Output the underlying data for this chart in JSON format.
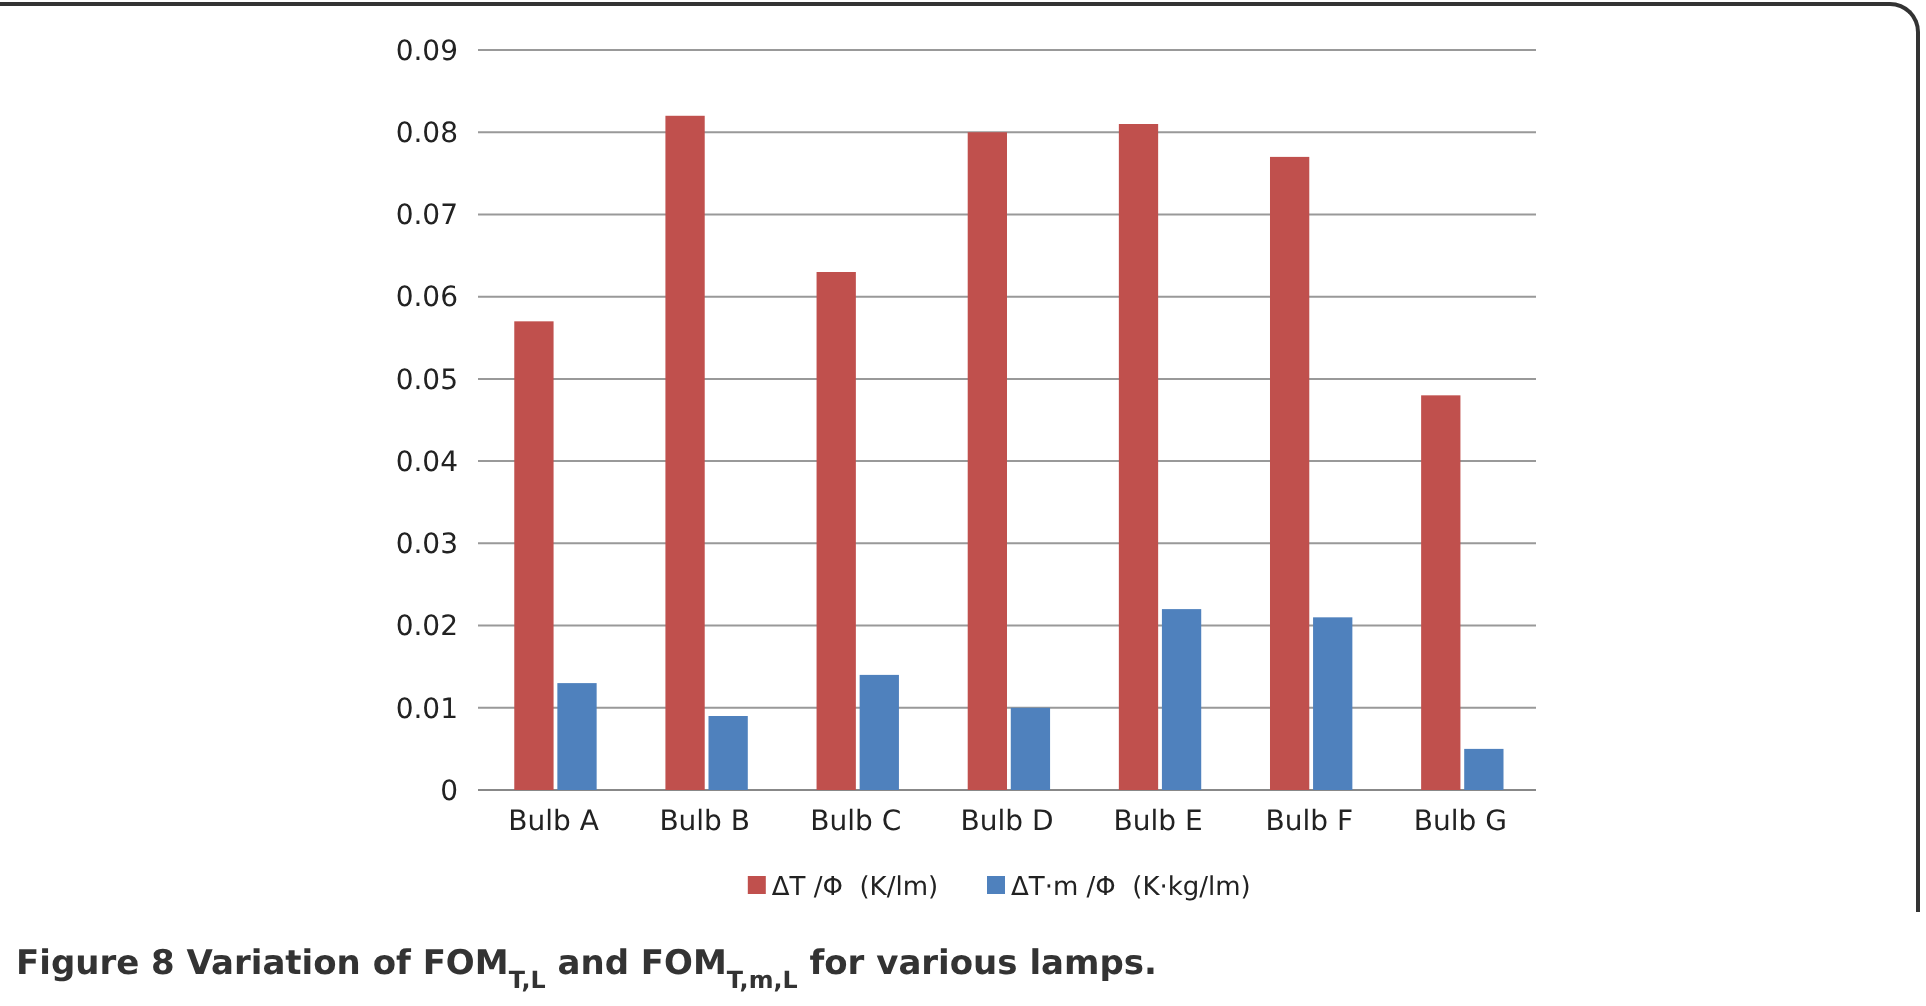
{
  "chart_data": {
    "type": "bar",
    "categories": [
      "Bulb A",
      "Bulb B",
      "Bulb C",
      "Bulb D",
      "Bulb E",
      "Bulb F",
      "Bulb G"
    ],
    "series": [
      {
        "name": "ΔT /Φ  (K/lm)",
        "color": "#c0504d",
        "values": [
          0.057,
          0.082,
          0.063,
          0.08,
          0.081,
          0.077,
          0.048
        ]
      },
      {
        "name": "ΔT·m /Φ  (K·kg/lm)",
        "color": "#4f81bd",
        "values": [
          0.013,
          0.009,
          0.014,
          0.01,
          0.022,
          0.021,
          0.005
        ]
      }
    ],
    "ylim": [
      0,
      0.09
    ],
    "yticks": [
      0,
      0.01,
      0.02,
      0.03,
      0.04,
      0.05,
      0.06,
      0.07,
      0.08,
      0.09
    ],
    "grid": "y",
    "legend": "bottom",
    "annotations": [
      "Figure 8 Variation of FOM$_{T,L}$ and FOM$_{T,m,L}$ for various lamps."
    ]
  }
}
